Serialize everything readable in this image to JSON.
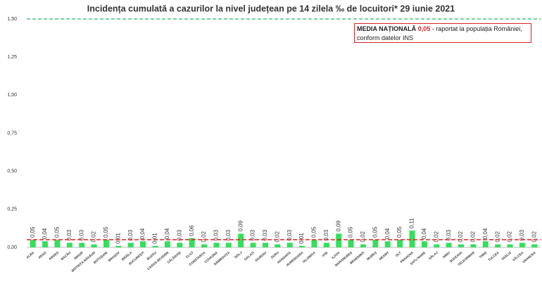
{
  "chart_data": {
    "type": "bar",
    "title": "Incidența cumulată a cazurilor la nivel județean pe 14 zilela ‰ de locuitori* 29 iunie 2021",
    "categories": [
      "ALBA",
      "ARAD",
      "ARGEȘ",
      "BACĂU",
      "BIHOR",
      "BISTRIȚA-NĂSĂUD",
      "BOTOȘANI",
      "BRAȘOV",
      "BRĂILA",
      "BUCUREȘTI",
      "BUZĂU",
      "CARAȘ-SEVERIN",
      "CĂLĂRAȘI",
      "CLUJ",
      "CONSTANȚA",
      "COVASNA",
      "DÂMBOVIȚA",
      "DOLJ",
      "GALAȚI",
      "GIURGIU",
      "GORJ",
      "HARGHITA",
      "HUNEDOARA",
      "IALOMIȚA",
      "IAȘI",
      "ILFOV",
      "MARAMUREȘ",
      "MEHEDINȚI",
      "MUREȘ",
      "NEAMȚ",
      "OLT",
      "PRAHOVA",
      "SATU MARE",
      "SĂLAJ",
      "SIBIU",
      "SUCEAVA",
      "TELEORMAN",
      "TIMIȘ",
      "TULCEA",
      "VASLUI",
      "VÂLCEA",
      "VRANCEA"
    ],
    "values": [
      0.05,
      0.04,
      0.05,
      0.03,
      0.03,
      0.02,
      0.05,
      0.01,
      0.03,
      0.04,
      0.01,
      0.04,
      0.03,
      0.06,
      0.02,
      0.03,
      0.03,
      0.09,
      0.03,
      0.03,
      0.02,
      0.03,
      0.01,
      0.05,
      0.03,
      0.09,
      0.05,
      0.02,
      0.05,
      0.04,
      0.05,
      0.11,
      0.04,
      0.02,
      0.03,
      0.02,
      0.02,
      0.04,
      0.02,
      0.02,
      0.03,
      0.02
    ],
    "value_labels": [
      "0,05",
      "0,04",
      "0,05",
      "0,03",
      "0,03",
      "0,02",
      "0,05",
      "0,01",
      "0,03",
      "0,04",
      "0,01",
      "0,04",
      "0,03",
      "0,06",
      "0,02",
      "0,03",
      "0,03",
      "0,09",
      "0,03",
      "0,03",
      "0,02",
      "0,03",
      "0,01",
      "0,05",
      "0,03",
      "0,09",
      "0,05",
      "0,02",
      "0,05",
      "0,04",
      "0,05",
      "0,11",
      "0,04",
      "0,02",
      "0,03",
      "0,02",
      "0,02",
      "0,04",
      "0,02",
      "0,02",
      "0,03",
      "0,02"
    ],
    "color": "#33e05a",
    "ylim": [
      0,
      1.5
    ],
    "yticks": [
      {
        "value": 0,
        "label": "0,00"
      },
      {
        "value": 0.25,
        "label": "0,25"
      },
      {
        "value": 0.5,
        "label": "0,50"
      },
      {
        "value": 0.75,
        "label": "0,75"
      },
      {
        "value": 1,
        "label": "1,00"
      },
      {
        "value": 1.25,
        "label": "1,25"
      },
      {
        "value": 1.5,
        "label": "1,50"
      }
    ],
    "top_line_color": "#2bb36b",
    "national_mean": {
      "value": 0.05,
      "label": "0,05",
      "color": "#d22"
    },
    "annotation": {
      "heading": "MEDIA NAȚIONALĂ",
      "text": "- raportat la populația României, conform datelor INS"
    }
  }
}
